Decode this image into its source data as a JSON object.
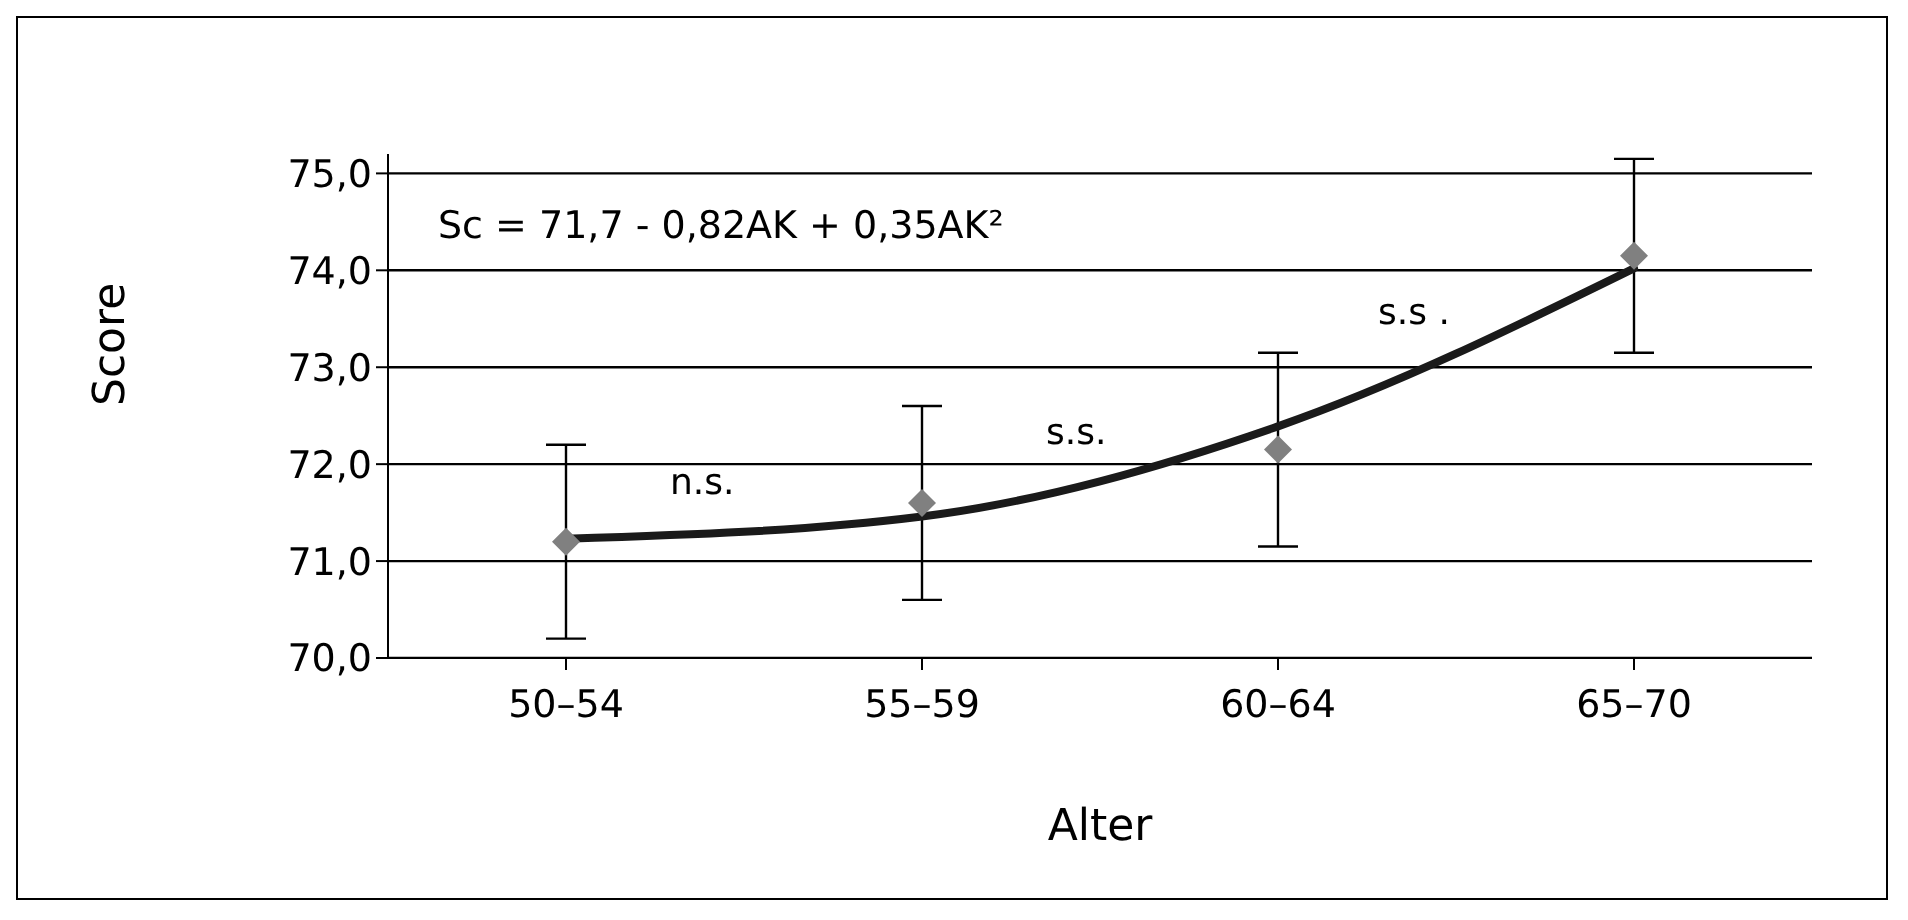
{
  "chart_data": {
    "type": "scatter",
    "xlabel": "Alter",
    "ylabel": "Score",
    "categories": [
      "50–54",
      "55–59",
      "60–64",
      "65–70"
    ],
    "series": [
      {
        "color": "#808080",
        "values": [
          71.2,
          71.6,
          72.15,
          74.15
        ],
        "errors": [
          1,
          1,
          1,
          1
        ],
        "marker": "diamond"
      },
      {
        "type": "line",
        "color": "#1a1a1a",
        "values": [
          71.23,
          71.46,
          72.39,
          74.02
        ],
        "marker": "none"
      }
    ],
    "ylim": [
      70,
      75.2
    ],
    "yticks": [
      {
        "value": 70,
        "label": "70,0"
      },
      {
        "value": 71,
        "label": "71,0"
      },
      {
        "value": 72,
        "label": "72,0"
      },
      {
        "value": 73,
        "label": "73,0"
      },
      {
        "value": 74,
        "label": "74,0"
      },
      {
        "value": 75,
        "label": "75,0"
      }
    ],
    "grid": "y",
    "annotations": [
      "Sc = 71,7 - 0,82AK + 0,35AK²",
      "n.s.",
      "s.s.",
      "s.s ."
    ]
  }
}
